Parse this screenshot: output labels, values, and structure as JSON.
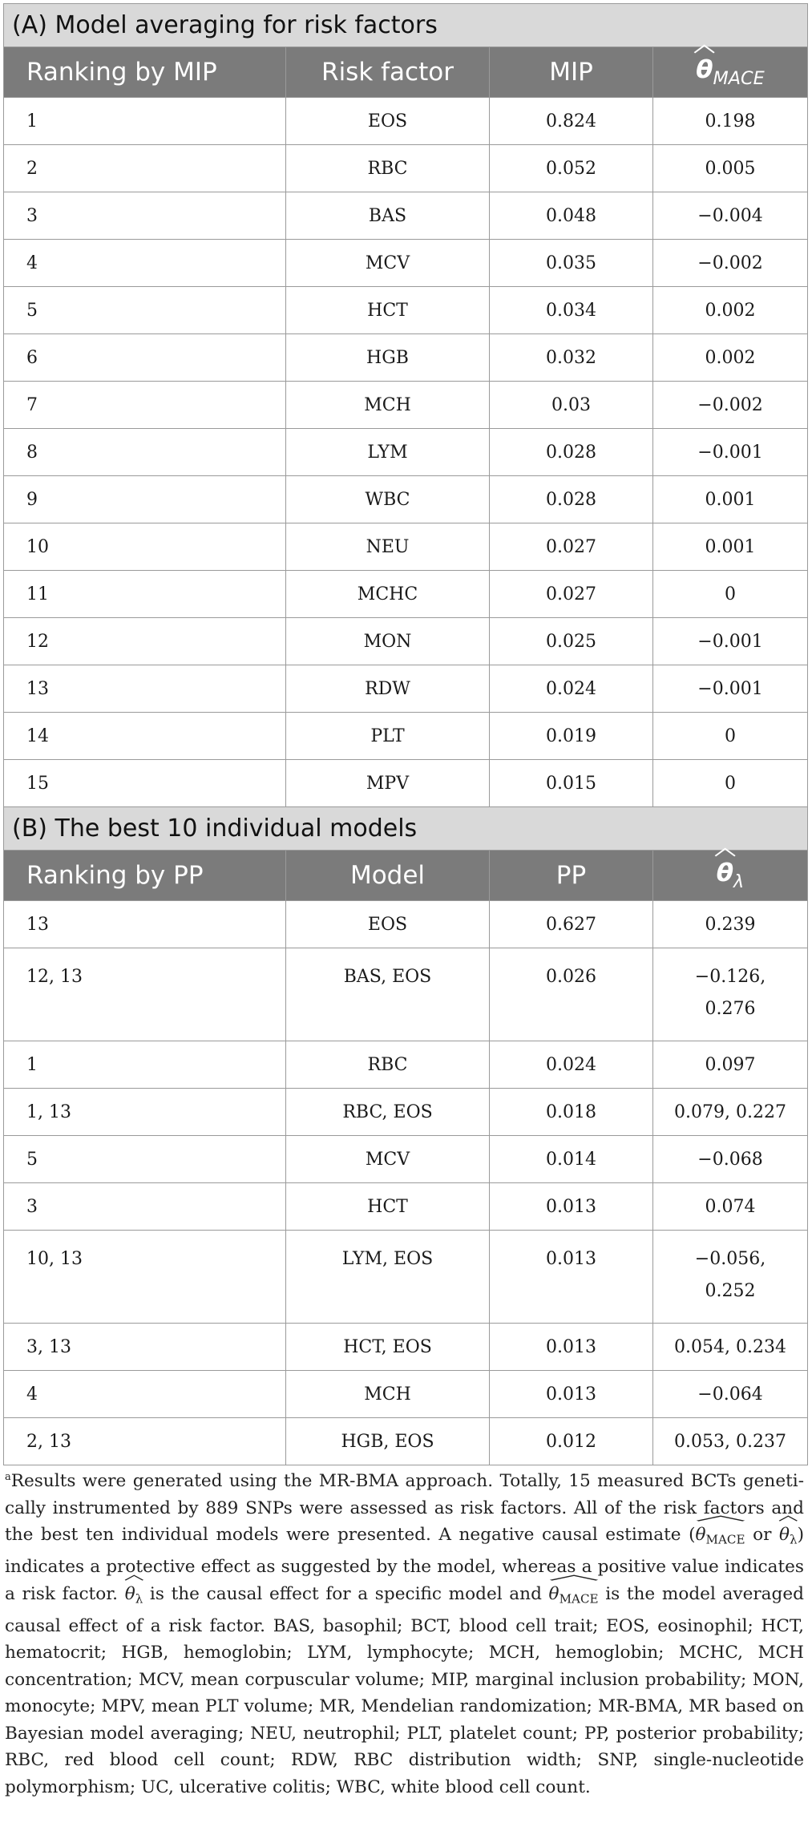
{
  "sectionA": {
    "title": "(A) Model averaging for risk factors",
    "headers": {
      "rank": "Ranking by MIP",
      "factor": "Risk factor",
      "mip": "MIP",
      "theta_symbol": "θ",
      "theta_sub": "MACE"
    },
    "rows": [
      {
        "rank": "1",
        "factor": "EOS",
        "mip": "0.824",
        "theta": "0.198"
      },
      {
        "rank": "2",
        "factor": "RBC",
        "mip": "0.052",
        "theta": "0.005"
      },
      {
        "rank": "3",
        "factor": "BAS",
        "mip": "0.048",
        "theta": "−0.004"
      },
      {
        "rank": "4",
        "factor": "MCV",
        "mip": "0.035",
        "theta": "−0.002"
      },
      {
        "rank": "5",
        "factor": "HCT",
        "mip": "0.034",
        "theta": "0.002"
      },
      {
        "rank": "6",
        "factor": "HGB",
        "mip": "0.032",
        "theta": "0.002"
      },
      {
        "rank": "7",
        "factor": "MCH",
        "mip": "0.03",
        "theta": "−0.002"
      },
      {
        "rank": "8",
        "factor": "LYM",
        "mip": "0.028",
        "theta": "−0.001"
      },
      {
        "rank": "9",
        "factor": "WBC",
        "mip": "0.028",
        "theta": "0.001"
      },
      {
        "rank": "10",
        "factor": "NEU",
        "mip": "0.027",
        "theta": "0.001"
      },
      {
        "rank": "11",
        "factor": "MCHC",
        "mip": "0.027",
        "theta": "0"
      },
      {
        "rank": "12",
        "factor": "MON",
        "mip": "0.025",
        "theta": "−0.001"
      },
      {
        "rank": "13",
        "factor": "RDW",
        "mip": "0.024",
        "theta": "−0.001"
      },
      {
        "rank": "14",
        "factor": "PLT",
        "mip": "0.019",
        "theta": "0"
      },
      {
        "rank": "15",
        "factor": "MPV",
        "mip": "0.015",
        "theta": "0"
      }
    ]
  },
  "sectionB": {
    "title": "(B) The best 10 individual models",
    "headers": {
      "rank": "Ranking by PP",
      "model": "Model",
      "pp": "PP",
      "theta_symbol": "θ",
      "theta_sub": "λ"
    },
    "rows": [
      {
        "rank": "13",
        "model": "EOS",
        "pp": "0.627",
        "theta": [
          "0.239"
        ]
      },
      {
        "rank": "12, 13",
        "model": "BAS, EOS",
        "pp": "0.026",
        "theta": [
          "−0.126,",
          "0.276"
        ]
      },
      {
        "rank": "1",
        "model": "RBC",
        "pp": "0.024",
        "theta": [
          "0.097"
        ]
      },
      {
        "rank": "1, 13",
        "model": "RBC, EOS",
        "pp": "0.018",
        "theta": [
          "0.079, 0.227"
        ]
      },
      {
        "rank": "5",
        "model": "MCV",
        "pp": "0.014",
        "theta": [
          "−0.068"
        ]
      },
      {
        "rank": "3",
        "model": "HCT",
        "pp": "0.013",
        "theta": [
          "0.074"
        ]
      },
      {
        "rank": "10, 13",
        "model": "LYM, EOS",
        "pp": "0.013",
        "theta": [
          "−0.056,",
          "0.252"
        ]
      },
      {
        "rank": "3, 13",
        "model": "HCT, EOS",
        "pp": "0.013",
        "theta": [
          "0.054, 0.234"
        ]
      },
      {
        "rank": "4",
        "model": "MCH",
        "pp": "0.013",
        "theta": [
          "−0.064"
        ]
      },
      {
        "rank": "2, 13",
        "model": "HGB, EOS",
        "pp": "0.012",
        "theta": [
          "0.053, 0.237"
        ]
      }
    ]
  },
  "footnote": {
    "marker": "a",
    "p1": "Results were generated using the MR-BMA approach. Totally, 15 measured BCTs geneti­cally instrumented by 889 SNPs were assessed as risk factors. All of the risk factors and the best ten individual models were presented. A negative causal estimate (",
    "theta": "θ",
    "sub_mace": "MACE",
    "or": " or ",
    "sub_lambda": "λ",
    "p2": ") indicates a protective effect as suggested by the model, whereas a positive value indicates a risk factor. ",
    "p3": " is the causal effect for a specific model and ",
    "p4": " is the model averaged causal effect of a risk factor. BAS, basophil; BCT, blood cell trait; EOS, eosinophil; HCT, hematocrit; HGB, hemoglobin; LYM, lymphocyte; MCH, hemoglobin; MCHC, MCH concentration; MCV, mean corpuscular volume; MIP, marginal inclusion probability; MON, monocyte; MPV, mean PLT volume; MR, Mendelian randomization; MR-BMA, MR based on Bayesian model averaging; NEU, neutrophil; PLT, platelet count; PP, posterior probability; RBC, red blood cell count; RDW, RBC distribution width; SNP, single-nucleotide polymorphism; UC, ulcerative colitis; WBC, white blood cell count."
  }
}
